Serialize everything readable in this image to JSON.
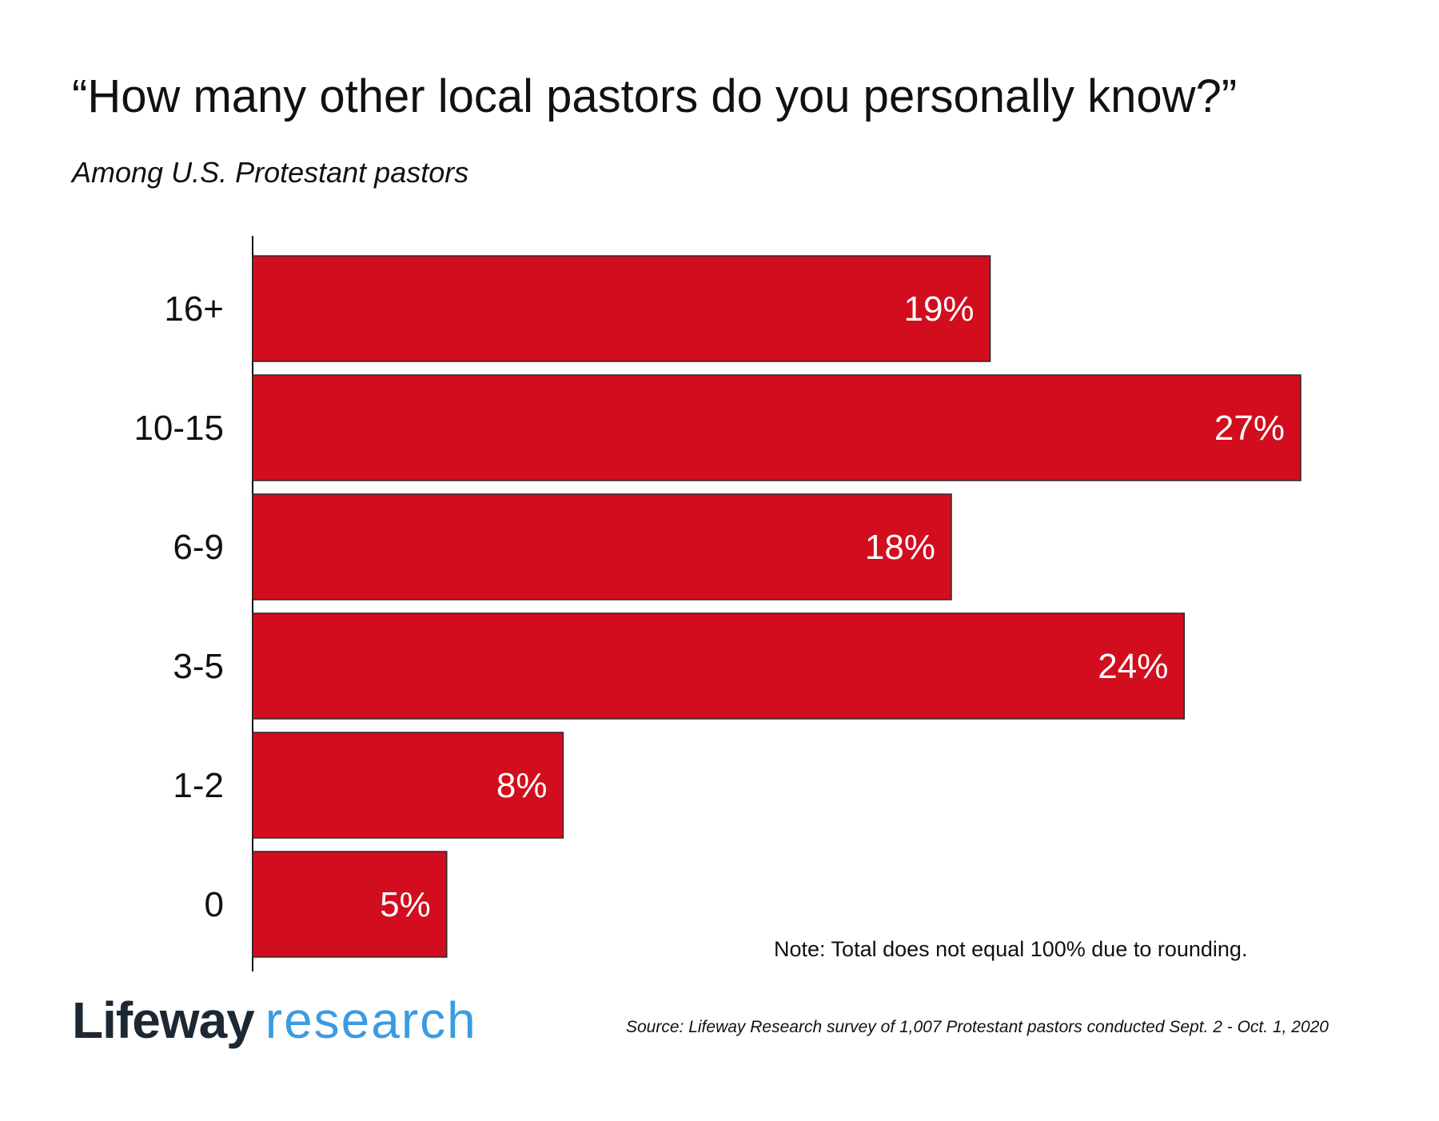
{
  "header": {
    "title": "“How many other local pastors do you personally know?”",
    "subtitle": "Among U.S. Protestant pastors"
  },
  "chart_data": {
    "type": "bar",
    "orientation": "horizontal",
    "categories": [
      "16+",
      "10-15",
      "6-9",
      "3-5",
      "1-2",
      "0"
    ],
    "values": [
      19,
      27,
      18,
      24,
      8,
      5
    ],
    "value_labels": [
      "19%",
      "27%",
      "18%",
      "24%",
      "8%",
      "5%"
    ],
    "unit": "%",
    "xlim": [
      0,
      27
    ],
    "grid": false,
    "bar_color": "#d10d1e"
  },
  "footer": {
    "note": "Note: Total does not equal 100% due to rounding.",
    "logo_brand": "Lifeway",
    "logo_sub": "research",
    "source": "Source: Lifeway Research survey of 1,007 Protestant pastors conducted Sept. 2 - Oct. 1, 2020"
  }
}
